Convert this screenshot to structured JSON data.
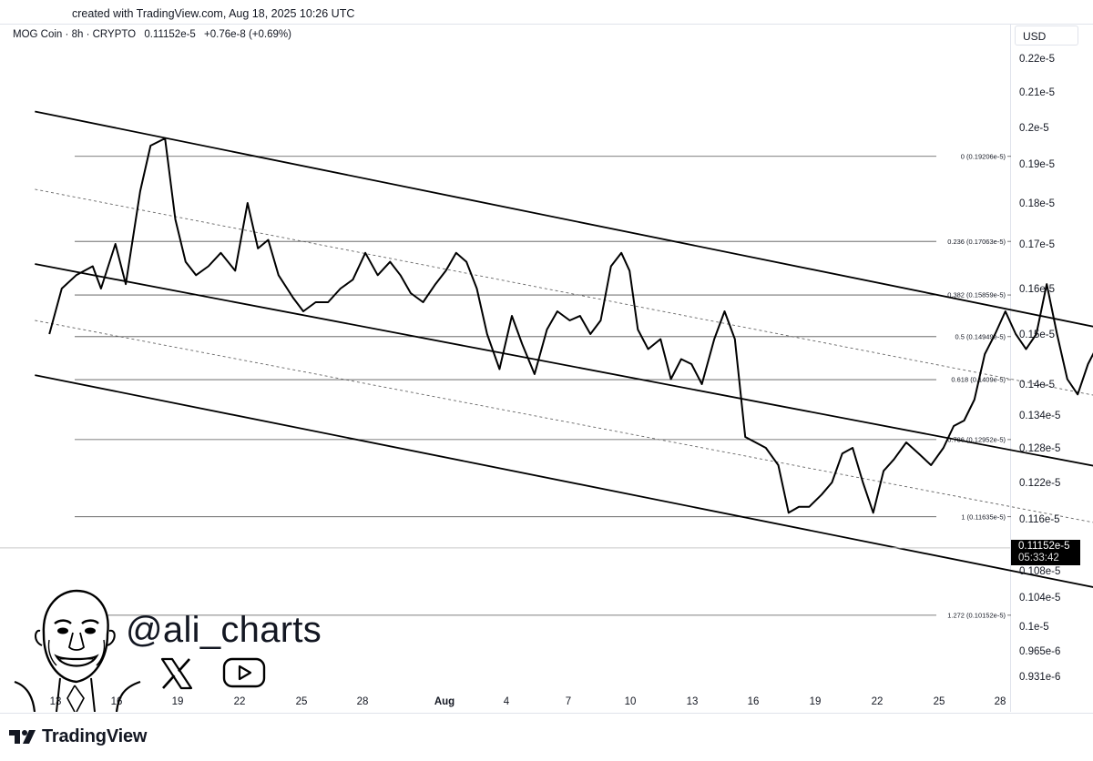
{
  "header": {
    "created": "created with TradingView.com, Aug 18, 2025 10:26 UTC",
    "symbol": "MOG Coin",
    "interval": "8h",
    "exchange": "CRYPTO",
    "title_sep": "·",
    "price": "0.11152e-5",
    "change": "+0.76e-8 (+0.69%)",
    "currency": "USD"
  },
  "price_tag": {
    "price": "0.11152e-5",
    "countdown": "05:33:42"
  },
  "branding": {
    "handle": "@ali_charts",
    "tradingview": "TradingView",
    "icons": [
      "x-logo-icon",
      "youtube-icon",
      "tradingview-logo-icon",
      "avatar-caricature"
    ]
  },
  "colors": {
    "price_line": "#000000",
    "projection": "#c8c8c8",
    "fib_line": "#555555",
    "channel": "#000000"
  },
  "chart_data": {
    "type": "line",
    "title": "",
    "xlabel": "",
    "ylabel": "",
    "y_unit": "e-5",
    "ylim": [
      0.0924,
      0.226
    ],
    "x_ticks": [
      "13",
      "16",
      "19",
      "22",
      "25",
      "28",
      "Aug",
      "4",
      "7",
      "10",
      "13",
      "16",
      "19",
      "22",
      "25",
      "28"
    ],
    "y_ticks": [
      "0.22e-5",
      "0.21e-5",
      "0.2e-5",
      "0.19e-5",
      "0.18e-5",
      "0.17e-5",
      "0.16e-5",
      "0.15e-5",
      "0.14e-5",
      "0.134e-5",
      "0.128e-5",
      "0.122e-5",
      "0.116e-5",
      "0.108e-5",
      "0.104e-5",
      "0.1e-5",
      "0.965e-6",
      "0.931e-6"
    ],
    "y_tick_values": [
      0.22,
      0.21,
      0.2,
      0.19,
      0.18,
      0.17,
      0.16,
      0.15,
      0.14,
      0.134,
      0.128,
      0.122,
      0.116,
      0.108,
      0.104,
      0.1,
      0.0965,
      0.0931
    ],
    "fib_levels": [
      {
        "ratio": "0",
        "label": "0 (0.19206e-5)",
        "value": 0.19206
      },
      {
        "ratio": "0.236",
        "label": "0.236 (0.17063e-5)",
        "value": 0.17063
      },
      {
        "ratio": "0.382",
        "label": "0.382 (0.15859e-5)",
        "value": 0.15859
      },
      {
        "ratio": "0.5",
        "label": "0.5 (0.14949e-5)",
        "value": 0.14949
      },
      {
        "ratio": "0.618",
        "label": "0.618 (0.1409e-5)",
        "value": 0.1409
      },
      {
        "ratio": "0.786",
        "label": "0.786 (0.12952e-5)",
        "value": 0.12952
      },
      {
        "ratio": "1",
        "label": "1 (0.11635e-5)",
        "value": 0.11635
      },
      {
        "ratio": "1.272",
        "label": "1.272 (0.10152e-5)",
        "value": 0.10152
      }
    ],
    "current_price": 0.11152,
    "x_day_index_note_unused": null,
    "price_series": [
      [
        -0.3,
        0.15
      ],
      [
        0.3,
        0.16
      ],
      [
        1.0,
        0.163
      ],
      [
        1.8,
        0.165
      ],
      [
        2.2,
        0.16
      ],
      [
        2.9,
        0.17
      ],
      [
        3.4,
        0.161
      ],
      [
        4.1,
        0.183
      ],
      [
        4.6,
        0.195
      ],
      [
        5.3,
        0.197
      ],
      [
        5.8,
        0.176
      ],
      [
        6.3,
        0.166
      ],
      [
        6.8,
        0.163
      ],
      [
        7.4,
        0.165
      ],
      [
        8.0,
        0.168
      ],
      [
        8.7,
        0.164
      ],
      [
        9.3,
        0.18
      ],
      [
        9.8,
        0.169
      ],
      [
        10.3,
        0.171
      ],
      [
        10.8,
        0.163
      ],
      [
        11.5,
        0.158
      ],
      [
        12.0,
        0.155
      ],
      [
        12.6,
        0.157
      ],
      [
        13.2,
        0.157
      ],
      [
        13.8,
        0.16
      ],
      [
        14.4,
        0.162
      ],
      [
        15.0,
        0.168
      ],
      [
        15.6,
        0.163
      ],
      [
        16.2,
        0.166
      ],
      [
        16.7,
        0.163
      ],
      [
        17.2,
        0.159
      ],
      [
        17.8,
        0.157
      ],
      [
        18.4,
        0.161
      ],
      [
        18.9,
        0.164
      ],
      [
        19.4,
        0.168
      ],
      [
        19.9,
        0.166
      ],
      [
        20.4,
        0.16
      ],
      [
        20.9,
        0.15
      ],
      [
        21.5,
        0.143
      ],
      [
        22.1,
        0.154
      ],
      [
        22.6,
        0.148
      ],
      [
        23.2,
        0.142
      ],
      [
        23.8,
        0.151
      ],
      [
        24.3,
        0.155
      ],
      [
        24.9,
        0.153
      ],
      [
        25.4,
        0.154
      ],
      [
        25.9,
        0.15
      ],
      [
        26.4,
        0.153
      ],
      [
        26.9,
        0.165
      ],
      [
        27.4,
        0.168
      ],
      [
        27.8,
        0.164
      ],
      [
        28.2,
        0.151
      ],
      [
        28.7,
        0.147
      ],
      [
        29.3,
        0.149
      ],
      [
        29.8,
        0.141
      ],
      [
        30.3,
        0.145
      ],
      [
        30.8,
        0.144
      ],
      [
        31.3,
        0.14
      ],
      [
        31.9,
        0.149
      ],
      [
        32.4,
        0.155
      ],
      [
        32.9,
        0.149
      ],
      [
        33.4,
        0.13
      ],
      [
        33.9,
        0.129
      ],
      [
        34.4,
        0.128
      ],
      [
        35.0,
        0.125
      ],
      [
        35.5,
        0.117
      ],
      [
        36.0,
        0.118
      ],
      [
        36.5,
        0.118
      ],
      [
        37.1,
        0.12
      ],
      [
        37.6,
        0.122
      ],
      [
        38.1,
        0.127
      ],
      [
        38.6,
        0.128
      ],
      [
        39.1,
        0.122
      ],
      [
        39.6,
        0.117
      ],
      [
        40.1,
        0.124
      ],
      [
        40.6,
        0.126
      ],
      [
        41.2,
        0.129
      ],
      [
        41.8,
        0.127
      ],
      [
        42.4,
        0.125
      ],
      [
        43.0,
        0.128
      ],
      [
        43.5,
        0.132
      ],
      [
        44.0,
        0.133
      ],
      [
        44.5,
        0.137
      ],
      [
        45.0,
        0.146
      ],
      [
        45.5,
        0.15
      ],
      [
        46.0,
        0.155
      ],
      [
        46.5,
        0.15
      ],
      [
        47.0,
        0.147
      ],
      [
        47.5,
        0.15
      ],
      [
        48.0,
        0.161
      ],
      [
        48.5,
        0.15
      ],
      [
        49.0,
        0.141
      ],
      [
        49.5,
        0.138
      ],
      [
        50.0,
        0.144
      ],
      [
        50.5,
        0.148
      ],
      [
        51.0,
        0.139
      ],
      [
        51.6,
        0.139
      ],
      [
        52.1,
        0.137
      ],
      [
        52.6,
        0.148
      ],
      [
        53.1,
        0.14
      ],
      [
        53.6,
        0.128
      ],
      [
        54.0,
        0.125
      ],
      [
        54.6,
        0.127
      ],
      [
        55.1,
        0.117
      ],
      [
        55.6,
        0.118
      ],
      [
        56.2,
        0.119
      ],
      [
        56.7,
        0.118
      ],
      [
        57.2,
        0.12
      ],
      [
        57.7,
        0.121
      ],
      [
        58.2,
        0.117
      ],
      [
        58.7,
        0.11
      ],
      [
        59.1,
        0.11
      ],
      [
        59.6,
        0.111
      ]
    ],
    "projection_series": [
      [
        59.8,
        0.112
      ],
      [
        60.3,
        0.118
      ],
      [
        60.8,
        0.115
      ],
      [
        61.3,
        0.107
      ],
      [
        61.8,
        0.101
      ],
      [
        62.3,
        0.104
      ],
      [
        62.8,
        0.109
      ],
      [
        63.3,
        0.104
      ],
      [
        63.8,
        0.106
      ],
      [
        64.3,
        0.113
      ],
      [
        64.8,
        0.108
      ],
      [
        65.3,
        0.112
      ],
      [
        65.8,
        0.115
      ],
      [
        66.3,
        0.109
      ],
      [
        66.8,
        0.113
      ],
      [
        67.4,
        0.127
      ],
      [
        67.9,
        0.12
      ],
      [
        68.4,
        0.128
      ],
      [
        68.9,
        0.134
      ]
    ],
    "channels": {
      "upper_solid": [
        [
          -1,
          0.2045
        ],
        [
          72,
          0.1335
        ]
      ],
      "middle_solid": [
        [
          -1,
          0.1655
        ],
        [
          72,
          0.111
        ]
      ],
      "lower_solid": [
        [
          -1,
          0.1418
        ],
        [
          72,
          0.093
        ]
      ],
      "upper_dashed": [
        [
          -1,
          0.1835
        ],
        [
          72,
          0.122
        ]
      ],
      "lower_dashed": [
        [
          -1,
          0.153
        ],
        [
          72,
          0.1025
        ]
      ]
    }
  }
}
